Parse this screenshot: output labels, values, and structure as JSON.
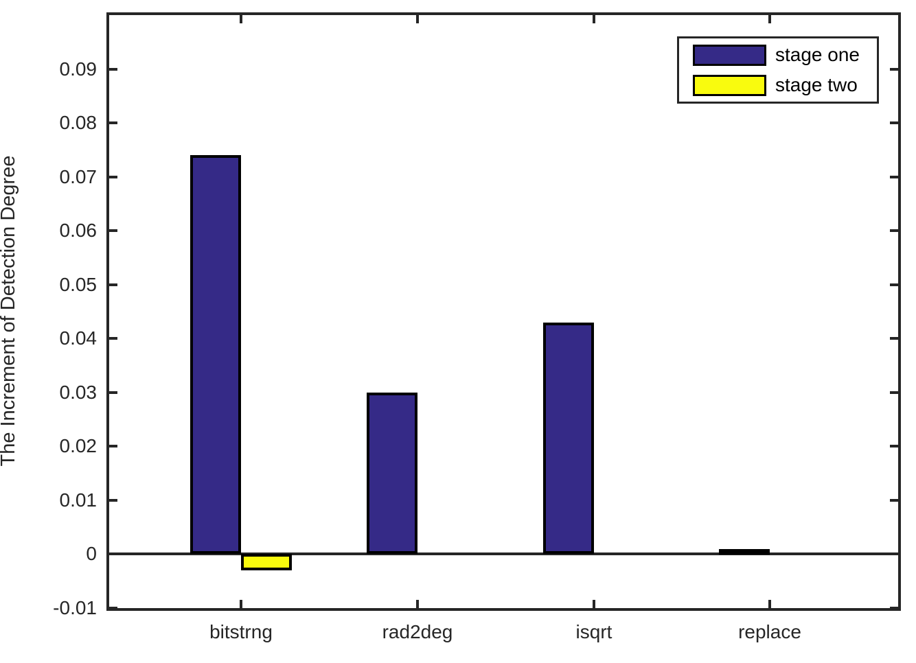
{
  "figure": {
    "background": "#ffffff",
    "axis_color": "#262626",
    "bar_edge_color": "#000000"
  },
  "chart_data": {
    "type": "bar",
    "title": "",
    "xlabel": "",
    "ylabel": "The Increment of Detection Degree",
    "categories": [
      "bitstrng",
      "rad2deg",
      "isqrt",
      "replace"
    ],
    "series": [
      {
        "name": "stage one",
        "color": "#352A87",
        "values": [
          0.074,
          0.03,
          0.043,
          0.001
        ]
      },
      {
        "name": "stage two",
        "color": "#F9FB0E",
        "values": [
          -0.003,
          0,
          0,
          0
        ]
      }
    ],
    "ylim": [
      -0.01,
      0.1
    ],
    "yticks": [
      -0.01,
      0,
      0.01,
      0.02,
      0.03,
      0.04,
      0.05,
      0.06,
      0.07,
      0.08,
      0.09
    ],
    "ytick_labels": [
      "-0.01",
      "0",
      "0.01",
      "0.02",
      "0.03",
      "0.04",
      "0.05",
      "0.06",
      "0.07",
      "0.08",
      "0.09"
    ],
    "grid": false,
    "zero_baseline": true,
    "legend": {
      "position": "top-right",
      "entries": [
        "stage one",
        "stage two"
      ]
    }
  }
}
